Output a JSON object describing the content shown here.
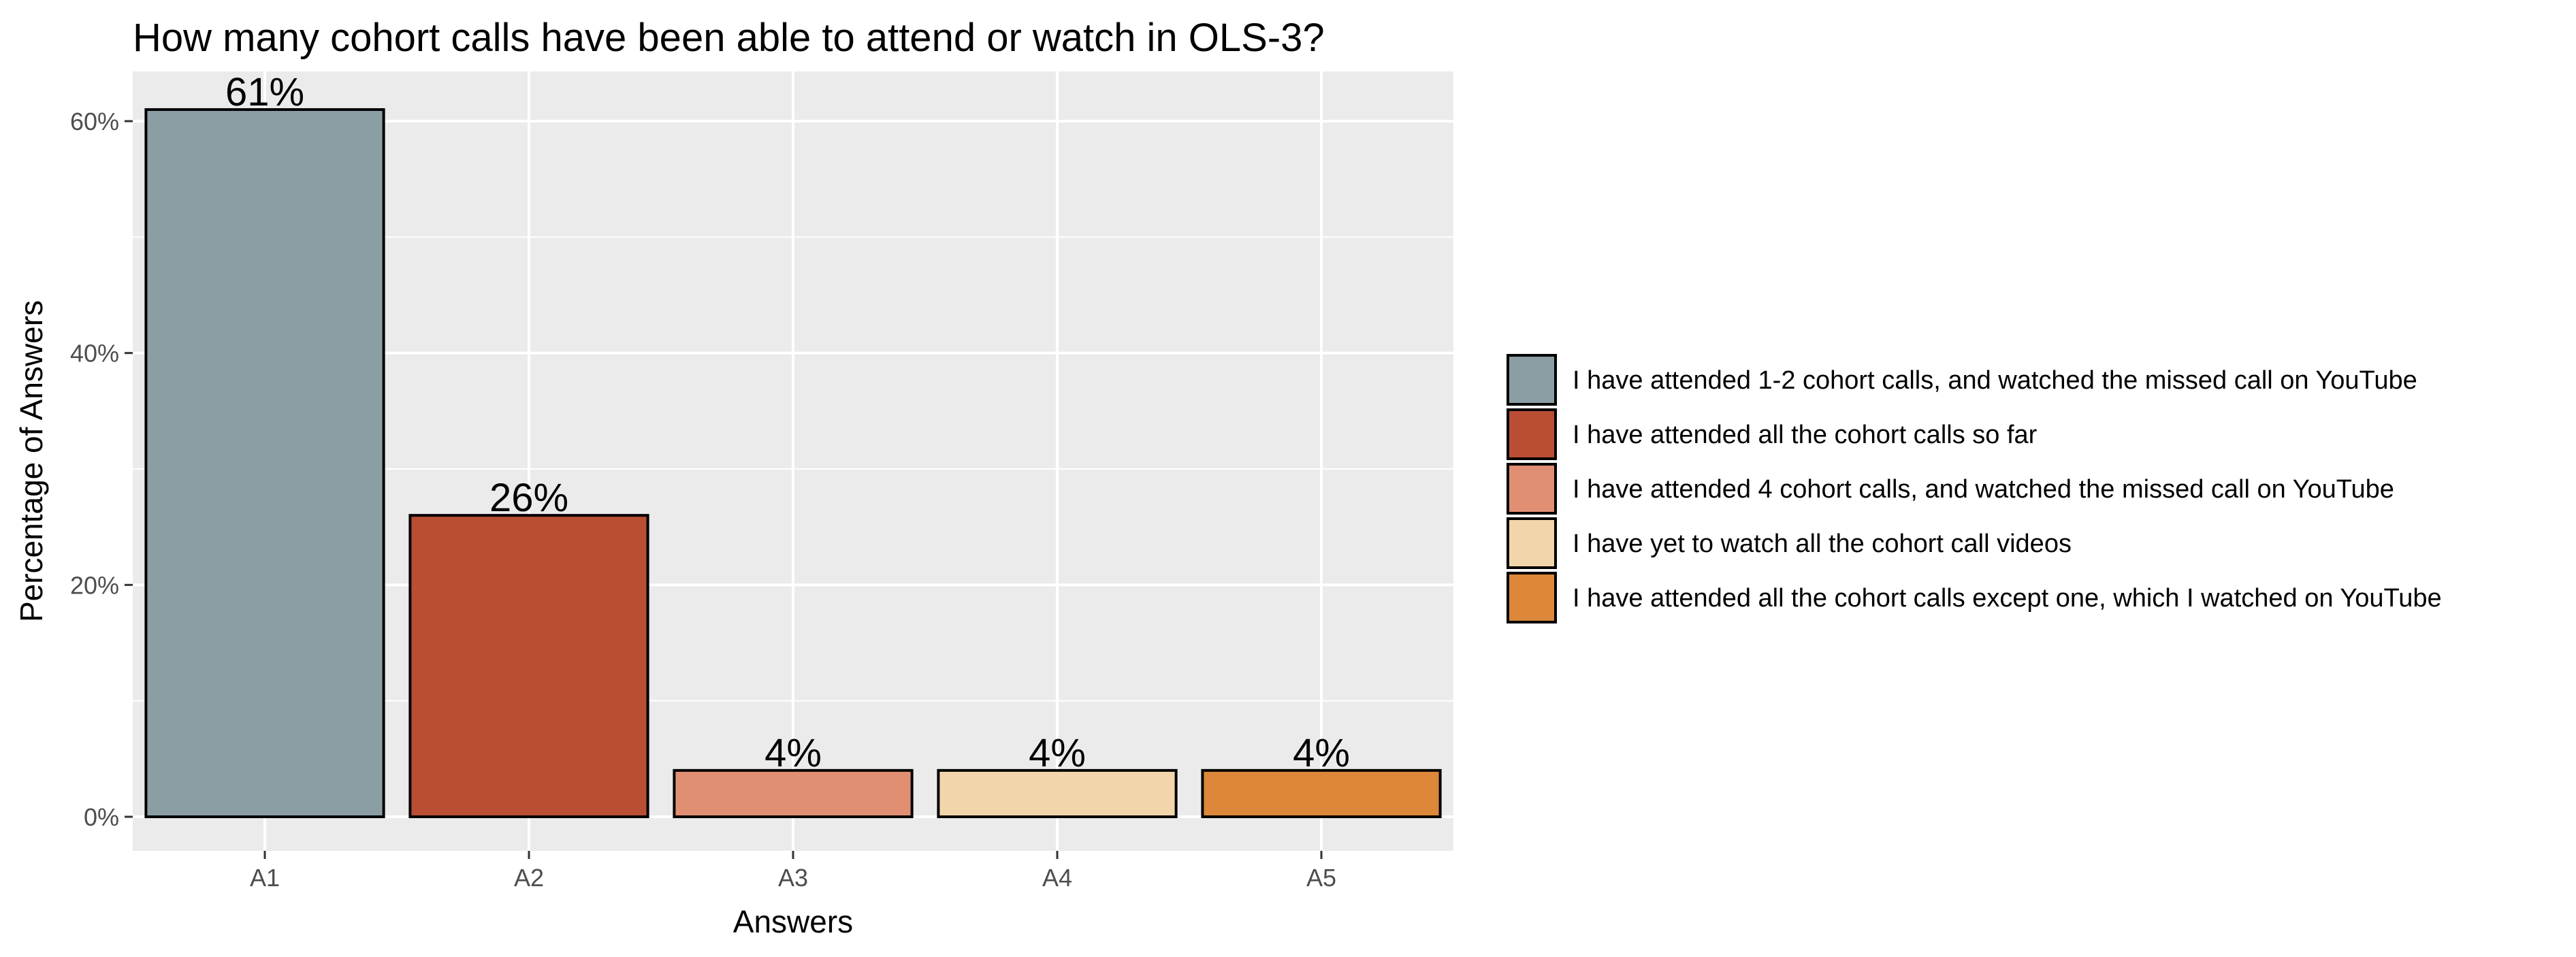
{
  "chart_data": {
    "type": "bar",
    "title": "How many cohort calls have been able to attend or watch in OLS-3?",
    "xlabel": "Answers",
    "ylabel": "Percentage of Answers",
    "categories": [
      "A1",
      "A2",
      "A3",
      "A4",
      "A5"
    ],
    "values": [
      61,
      26,
      4,
      4,
      4
    ],
    "data_labels": [
      "61%",
      "26%",
      "4%",
      "4%",
      "4%"
    ],
    "colors": [
      "#8a9ea4",
      "#b94e35",
      "#e18f73",
      "#f3d5ab",
      "#dc8739"
    ],
    "ylim": [
      0,
      65
    ],
    "yticks": [
      0,
      20,
      40,
      60
    ],
    "ytick_labels": [
      "0%",
      "20%",
      "40%",
      "60%"
    ],
    "grid": true,
    "panel_background": "#ebebeb",
    "legend_position": "right",
    "legend": [
      "I have attended 1-2 cohort calls, and watched the missed call on YouTube",
      "I have attended all the cohort calls so far",
      "I have attended 4 cohort calls, and watched the missed call on YouTube",
      "I have yet to watch all the cohort call videos",
      "I have attended all the cohort calls except one, which I watched on YouTube"
    ]
  }
}
